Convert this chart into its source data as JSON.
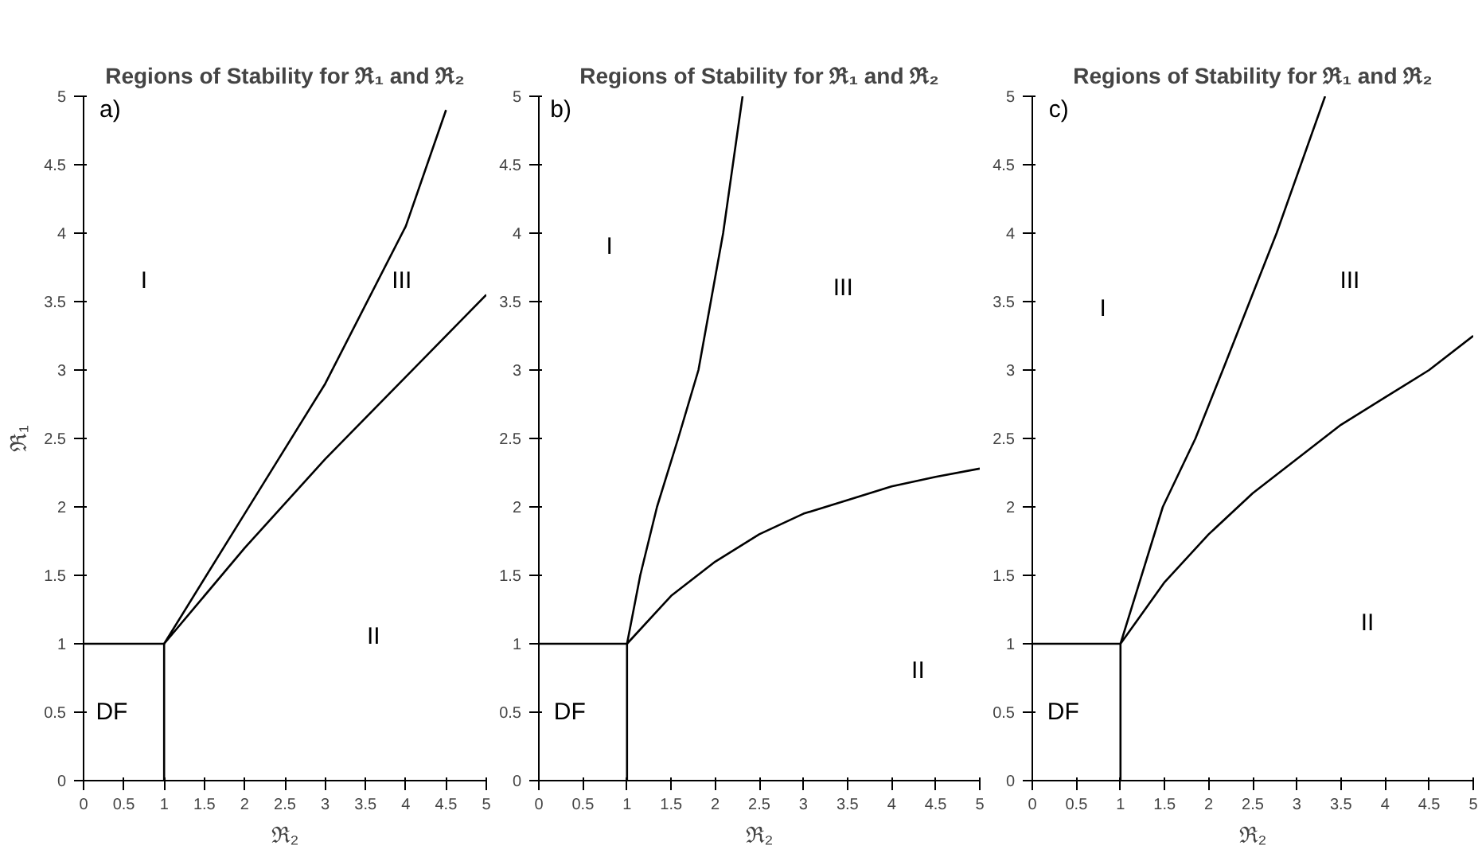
{
  "chart_data": [
    {
      "type": "line",
      "title": "Regions of Stability for ℜ₁ and ℜ₂",
      "xlabel": "ℜ₂",
      "ylabel": "ℜ₁",
      "xlim": [
        0,
        5
      ],
      "ylim": [
        0,
        5
      ],
      "xticks": [
        0,
        0.5,
        1,
        1.5,
        2,
        2.5,
        3,
        3.5,
        4,
        4.5,
        5
      ],
      "yticks": [
        0,
        0.5,
        1,
        1.5,
        2,
        2.5,
        3,
        3.5,
        4,
        4.5,
        5
      ],
      "grid": false,
      "marker": "none",
      "line_style": "solid",
      "series": [
        {
          "color": "#000000",
          "x": [
            0,
            1,
            1
          ],
          "values": [
            1,
            1,
            0
          ]
        },
        {
          "color": "#000000",
          "x": [
            4.5,
            4,
            3,
            2,
            1,
            2,
            3,
            4,
            5
          ],
          "values": [
            4.9,
            4.05,
            2.9,
            1.95,
            1,
            1.7,
            2.35,
            2.95,
            3.55
          ]
        }
      ],
      "annotations": [
        "a)",
        "I",
        "III",
        "II",
        "DF"
      ]
    },
    {
      "type": "line",
      "title": "Regions of Stability for ℜ₁ and ℜ₂",
      "xlabel": "ℜ₂",
      "xlim": [
        0,
        5
      ],
      "ylim": [
        0,
        5
      ],
      "xticks": [
        0,
        0.5,
        1,
        1.5,
        2,
        2.5,
        3,
        3.5,
        4,
        4.5,
        5
      ],
      "yticks": [
        0,
        0.5,
        1,
        1.5,
        2,
        2.5,
        3,
        3.5,
        4,
        4.5,
        5
      ],
      "grid": false,
      "marker": "none",
      "line_style": "solid",
      "series": [
        {
          "color": "#000000",
          "x": [
            0,
            1,
            1
          ],
          "values": [
            1,
            1,
            0
          ]
        },
        {
          "color": "#000000",
          "x": [
            2.31,
            2.09,
            1.81,
            1.58,
            1.34,
            1.15,
            1,
            1.5,
            2,
            2.5,
            3,
            3.5,
            4,
            4.5,
            5
          ],
          "values": [
            5,
            4,
            3,
            2.5,
            2,
            1.5,
            1,
            1.35,
            1.6,
            1.8,
            1.95,
            2.05,
            2.15,
            2.22,
            2.28
          ]
        }
      ],
      "annotations": [
        "b)",
        "I",
        "III",
        "II",
        "DF"
      ]
    },
    {
      "type": "line",
      "title": "Regions of Stability for ℜ₁ and ℜ₂",
      "xlabel": "ℜ₂",
      "xlim": [
        0,
        5
      ],
      "ylim": [
        0,
        5
      ],
      "xticks": [
        0,
        0.5,
        1,
        1.5,
        2,
        2.5,
        3,
        3.5,
        4,
        4.5,
        5
      ],
      "yticks": [
        0,
        0.5,
        1,
        1.5,
        2,
        2.5,
        3,
        3.5,
        4,
        4.5,
        5
      ],
      "grid": false,
      "marker": "none",
      "line_style": "solid",
      "series": [
        {
          "color": "#000000",
          "x": [
            0,
            1,
            1
          ],
          "values": [
            1,
            1,
            0
          ]
        },
        {
          "color": "#000000",
          "x": [
            3.32,
            2.77,
            2.16,
            1.85,
            1.48,
            1,
            1.5,
            2,
            2.5,
            3,
            3.5,
            4,
            4.5,
            5
          ],
          "values": [
            5,
            4,
            3,
            2.5,
            2,
            1,
            1.45,
            1.8,
            2.1,
            2.35,
            2.6,
            2.8,
            3.0,
            3.25
          ]
        }
      ],
      "annotations": [
        "c)",
        "I",
        "III",
        "II",
        "DF"
      ]
    }
  ]
}
